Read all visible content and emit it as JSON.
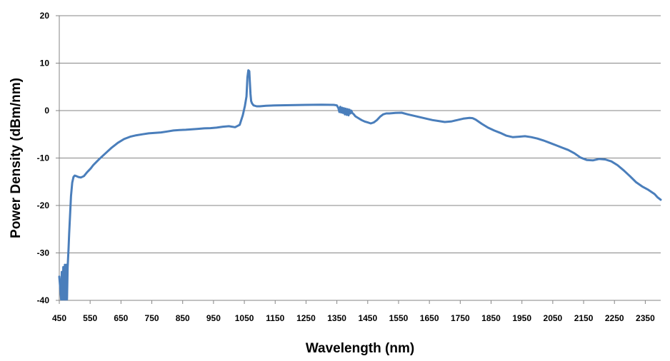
{
  "chart_data": {
    "type": "line",
    "title": "",
    "xlabel": "Wavelength (nm)",
    "ylabel": "Power Density (dBm/nm)",
    "xlim": [
      450,
      2400
    ],
    "ylim": [
      -40,
      20
    ],
    "x_ticks": [
      450,
      550,
      650,
      750,
      850,
      950,
      1050,
      1150,
      1250,
      1350,
      1450,
      1550,
      1650,
      1750,
      1850,
      1950,
      2050,
      2150,
      2250,
      2350
    ],
    "y_ticks": [
      -40,
      -30,
      -20,
      -10,
      0,
      10,
      20
    ],
    "grid": "horizontal",
    "legend": "none",
    "colors": {
      "series": "#4a7ebb",
      "gridline": "#868686",
      "axis": "#868686"
    },
    "series": [
      {
        "x": [
          450,
          456,
          458,
          461,
          463,
          466,
          468,
          470,
          473,
          475,
          477,
          480,
          482,
          485,
          488,
          492,
          496,
          500,
          505,
          512,
          520,
          530,
          540,
          552,
          560,
          580,
          600,
          620,
          640,
          660,
          680,
          700,
          720,
          740,
          760,
          780,
          800,
          820,
          840,
          860,
          880,
          900,
          920,
          940,
          960,
          980,
          1000,
          1020,
          1035,
          1045,
          1052,
          1057,
          1060,
          1063,
          1066,
          1068,
          1070,
          1072,
          1075,
          1080,
          1090,
          1100,
          1120,
          1150,
          1200,
          1250,
          1300,
          1340,
          1350,
          1355,
          1358,
          1361,
          1364,
          1367,
          1370,
          1373,
          1376,
          1379,
          1382,
          1385,
          1388,
          1391,
          1394,
          1397,
          1400,
          1405,
          1410,
          1420,
          1430,
          1440,
          1450,
          1460,
          1470,
          1480,
          1490,
          1500,
          1510,
          1520,
          1540,
          1560,
          1580,
          1600,
          1620,
          1640,
          1660,
          1680,
          1700,
          1720,
          1740,
          1760,
          1780,
          1790,
          1800,
          1820,
          1840,
          1860,
          1880,
          1900,
          1920,
          1940,
          1960,
          1980,
          2000,
          2020,
          2040,
          2060,
          2080,
          2100,
          2120,
          2140,
          2160,
          2180,
          2200,
          2220,
          2240,
          2260,
          2280,
          2300,
          2320,
          2340,
          2360,
          2380,
          2390,
          2400
        ],
        "y": [
          -35,
          -39.8,
          -34,
          -39.8,
          -33,
          -39.8,
          -32.5,
          -39.8,
          -32.5,
          -39.8,
          -33,
          -29,
          -26,
          -22,
          -18,
          -15.2,
          -14,
          -13.7,
          -13.8,
          -14,
          -14.1,
          -13.8,
          -13,
          -12.2,
          -11.5,
          -10.2,
          -9,
          -7.8,
          -6.8,
          -6,
          -5.5,
          -5.2,
          -5,
          -4.8,
          -4.7,
          -4.6,
          -4.4,
          -4.2,
          -4.1,
          -4.05,
          -3.95,
          -3.85,
          -3.75,
          -3.7,
          -3.6,
          -3.4,
          -3.3,
          -3.5,
          -3,
          -1,
          1,
          3,
          7,
          8.5,
          8.3,
          6,
          3.5,
          2,
          1.5,
          1.1,
          0.9,
          0.9,
          1,
          1.1,
          1.15,
          1.2,
          1.25,
          1.2,
          1.1,
          0.5,
          -0.3,
          0.8,
          -0.4,
          0.6,
          -0.5,
          0.5,
          -0.8,
          0.4,
          -0.9,
          0.3,
          -1,
          0.2,
          -0.6,
          0,
          -0.5,
          -0.8,
          -1.2,
          -1.6,
          -2,
          -2.3,
          -2.5,
          -2.7,
          -2.5,
          -2,
          -1.3,
          -0.8,
          -0.6,
          -0.6,
          -0.5,
          -0.45,
          -0.8,
          -1.1,
          -1.4,
          -1.7,
          -2,
          -2.2,
          -2.4,
          -2.3,
          -2,
          -1.7,
          -1.55,
          -1.6,
          -1.9,
          -2.8,
          -3.6,
          -4.2,
          -4.7,
          -5.3,
          -5.6,
          -5.5,
          -5.4,
          -5.6,
          -5.9,
          -6.3,
          -6.8,
          -7.3,
          -7.8,
          -8.3,
          -9,
          -9.9,
          -10.4,
          -10.5,
          -10.2,
          -10.3,
          -10.7,
          -11.5,
          -12.6,
          -13.8,
          -15.1,
          -16,
          -16.7,
          -17.6,
          -18.3,
          -18.8
        ]
      }
    ]
  }
}
